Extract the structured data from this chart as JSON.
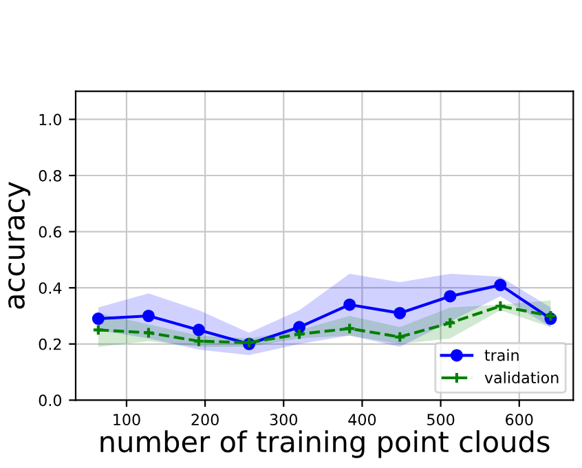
{
  "chart_data": {
    "type": "line",
    "xlabel": "number of training point clouds",
    "ylabel": "accuracy",
    "x": [
      64,
      128,
      192,
      256,
      320,
      384,
      448,
      512,
      576,
      640
    ],
    "series": [
      {
        "name": "train",
        "color": "#0000ff",
        "marker": "circle",
        "line_style": "solid",
        "values": [
          0.29,
          0.3,
          0.25,
          0.2,
          0.26,
          0.34,
          0.31,
          0.37,
          0.41,
          0.29
        ],
        "lower": [
          0.25,
          0.22,
          0.18,
          0.16,
          0.2,
          0.23,
          0.19,
          0.28,
          0.37,
          0.26
        ],
        "upper": [
          0.33,
          0.38,
          0.32,
          0.24,
          0.32,
          0.45,
          0.42,
          0.45,
          0.44,
          0.33
        ]
      },
      {
        "name": "validation",
        "color": "#008000",
        "marker": "cross",
        "line_style": "dashed",
        "values": [
          0.25,
          0.24,
          0.21,
          0.205,
          0.235,
          0.255,
          0.225,
          0.275,
          0.335,
          0.3
        ],
        "lower": [
          0.19,
          0.21,
          0.19,
          0.19,
          0.22,
          0.23,
          0.2,
          0.22,
          0.32,
          0.26
        ],
        "upper": [
          0.31,
          0.27,
          0.23,
          0.22,
          0.25,
          0.3,
          0.26,
          0.33,
          0.34,
          0.355
        ]
      }
    ],
    "xlim": [
      35.2,
      668.8
    ],
    "xticks": [
      100,
      200,
      300,
      400,
      500,
      600
    ],
    "ylim": [
      0.0,
      1.1
    ],
    "yticks": [
      {
        "value": 0.0,
        "label": "0.0"
      },
      {
        "value": 0.2,
        "label": "0.2"
      },
      {
        "value": 0.4,
        "label": "0.4"
      },
      {
        "value": 0.6,
        "label": "0.6"
      },
      {
        "value": 0.8,
        "label": "0.8"
      },
      {
        "value": 1.0,
        "label": "1.0"
      }
    ],
    "grid": true,
    "legend": "bottom right"
  }
}
